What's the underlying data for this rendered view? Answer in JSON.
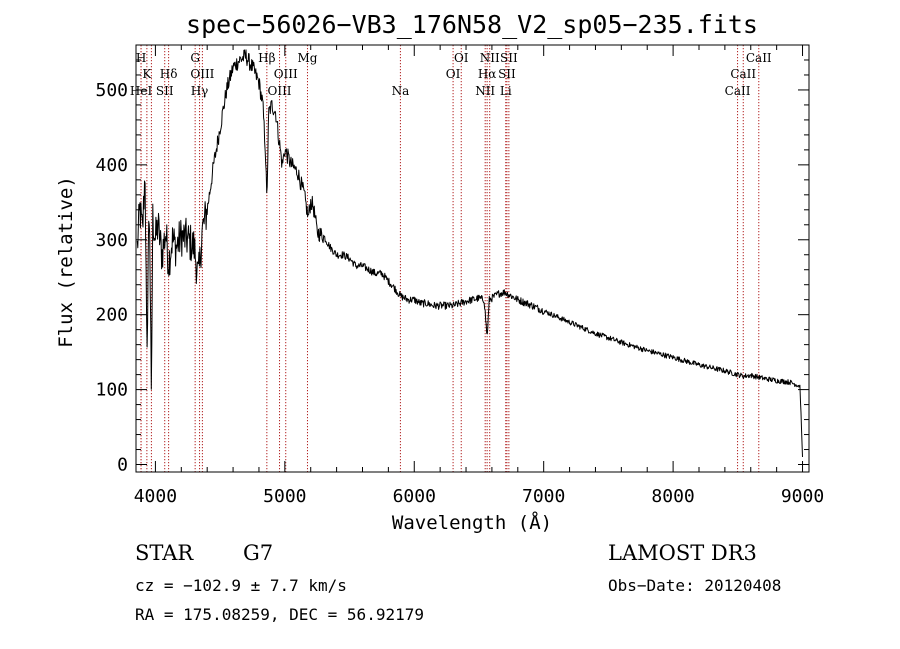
{
  "chart_data": {
    "type": "line",
    "title": "spec−56026−VB3_176N58_V2_sp05−235.fits",
    "xlabel": "Wavelength (Å)",
    "ylabel": "Flux (relative)",
    "xlim": [
      3850,
      9050
    ],
    "ylim": [
      -10,
      560
    ],
    "x_ticks": [
      4000,
      5000,
      6000,
      7000,
      8000,
      9000
    ],
    "x_tick_labels": [
      "4000",
      "5000",
      "6000",
      "7000",
      "8000",
      "9000"
    ],
    "y_ticks": [
      0,
      100,
      200,
      300,
      400,
      500
    ],
    "y_tick_labels": [
      "0",
      "100",
      "200",
      "300",
      "400",
      "500"
    ],
    "colors": {
      "spectrum": "#000000",
      "lines": "#b22222",
      "axes": "#000000"
    },
    "spectrum_anchors": {
      "wavelength": [
        3860,
        3880,
        3900,
        3920,
        3935,
        3945,
        3955,
        3968,
        3980,
        4000,
        4020,
        4050,
        4080,
        4102,
        4130,
        4160,
        4200,
        4250,
        4300,
        4330,
        4340,
        4360,
        4400,
        4450,
        4500,
        4550,
        4600,
        4650,
        4700,
        4750,
        4800,
        4830,
        4850,
        4861,
        4875,
        4900,
        4930,
        4950,
        4980,
        5000,
        5050,
        5100,
        5150,
        5180,
        5200,
        5220,
        5250,
        5300,
        5350,
        5400,
        5450,
        5500,
        5550,
        5600,
        5650,
        5700,
        5750,
        5800,
        5850,
        5893,
        5950,
        6000,
        6050,
        6100,
        6150,
        6200,
        6250,
        6300,
        6350,
        6400,
        6450,
        6500,
        6540,
        6563,
        6580,
        6600,
        6650,
        6700,
        6750,
        6800,
        6900,
        7000,
        7200,
        7400,
        7600,
        7800,
        8000,
        8200,
        8400,
        8500,
        8542,
        8600,
        8700,
        8800,
        8900,
        8980,
        9000
      ],
      "flux": [
        290,
        340,
        310,
        390,
        120,
        300,
        340,
        80,
        330,
        300,
        320,
        280,
        310,
        270,
        300,
        290,
        305,
        300,
        290,
        250,
        260,
        310,
        340,
        400,
        450,
        500,
        530,
        540,
        545,
        530,
        510,
        480,
        420,
        350,
        470,
        480,
        470,
        440,
        400,
        420,
        400,
        390,
        360,
        330,
        350,
        345,
        310,
        305,
        290,
        280,
        280,
        275,
        265,
        265,
        260,
        255,
        255,
        245,
        235,
        225,
        220,
        220,
        215,
        215,
        212,
        212,
        212,
        212,
        215,
        218,
        220,
        222,
        220,
        170,
        220,
        222,
        228,
        230,
        225,
        220,
        213,
        205,
        190,
        175,
        163,
        152,
        143,
        133,
        125,
        120,
        118,
        119,
        115,
        112,
        110,
        105,
        10
      ]
    },
    "spectral_lines": [
      {
        "wavelength": 3889,
        "labels": [
          "H"
        ],
        "tier": 0
      },
      {
        "wavelength": 3934,
        "labels": [
          "K"
        ],
        "tier": 1
      },
      {
        "wavelength": 3889,
        "labels": [
          "HeI"
        ],
        "tier": 2
      },
      {
        "wavelength": 3969,
        "labels": [],
        "tier": 0
      },
      {
        "wavelength": 4072,
        "labels": [
          "SII"
        ],
        "tier": 2
      },
      {
        "wavelength": 4102,
        "labels": [
          "Hδ"
        ],
        "tier": 1
      },
      {
        "wavelength": 4307,
        "labels": [
          "G"
        ],
        "tier": 0
      },
      {
        "wavelength": 4341,
        "labels": [
          "Hγ"
        ],
        "tier": 2
      },
      {
        "wavelength": 4363,
        "labels": [
          "OIII"
        ],
        "tier": 1
      },
      {
        "wavelength": 4861,
        "labels": [
          "Hβ"
        ],
        "tier": 0
      },
      {
        "wavelength": 4959,
        "labels": [
          "OIII"
        ],
        "tier": 2
      },
      {
        "wavelength": 5007,
        "labels": [
          "OIII"
        ],
        "tier": 1
      },
      {
        "wavelength": 5175,
        "labels": [
          "Mg"
        ],
        "tier": 0
      },
      {
        "wavelength": 5893,
        "labels": [
          "Na"
        ],
        "tier": 2
      },
      {
        "wavelength": 6300,
        "labels": [
          "OI"
        ],
        "tier": 1
      },
      {
        "wavelength": 6363,
        "labels": [
          "OI"
        ],
        "tier": 0
      },
      {
        "wavelength": 6548,
        "labels": [
          "NII"
        ],
        "tier": 2
      },
      {
        "wavelength": 6563,
        "labels": [
          "Hα"
        ],
        "tier": 1
      },
      {
        "wavelength": 6583,
        "labels": [
          "NII"
        ],
        "tier": 0
      },
      {
        "wavelength": 6707,
        "labels": [
          "Li"
        ],
        "tier": 2
      },
      {
        "wavelength": 6716,
        "labels": [
          "SII"
        ],
        "tier": 1
      },
      {
        "wavelength": 6731,
        "labels": [
          "SII"
        ],
        "tier": 0
      },
      {
        "wavelength": 8498,
        "labels": [
          "CaII"
        ],
        "tier": 2
      },
      {
        "wavelength": 8542,
        "labels": [
          "CaII"
        ],
        "tier": 1
      },
      {
        "wavelength": 8662,
        "labels": [
          "CaII"
        ],
        "tier": 0
      }
    ]
  },
  "footer": {
    "object_class": "STAR",
    "subclass": "G7",
    "survey": "LAMOST DR3",
    "redshift": "cz = −102.9 ± 7.7 km/s",
    "obs_date": "Obs−Date: 20120408",
    "coordinates": "RA = 175.08259, DEC =  56.92179"
  }
}
